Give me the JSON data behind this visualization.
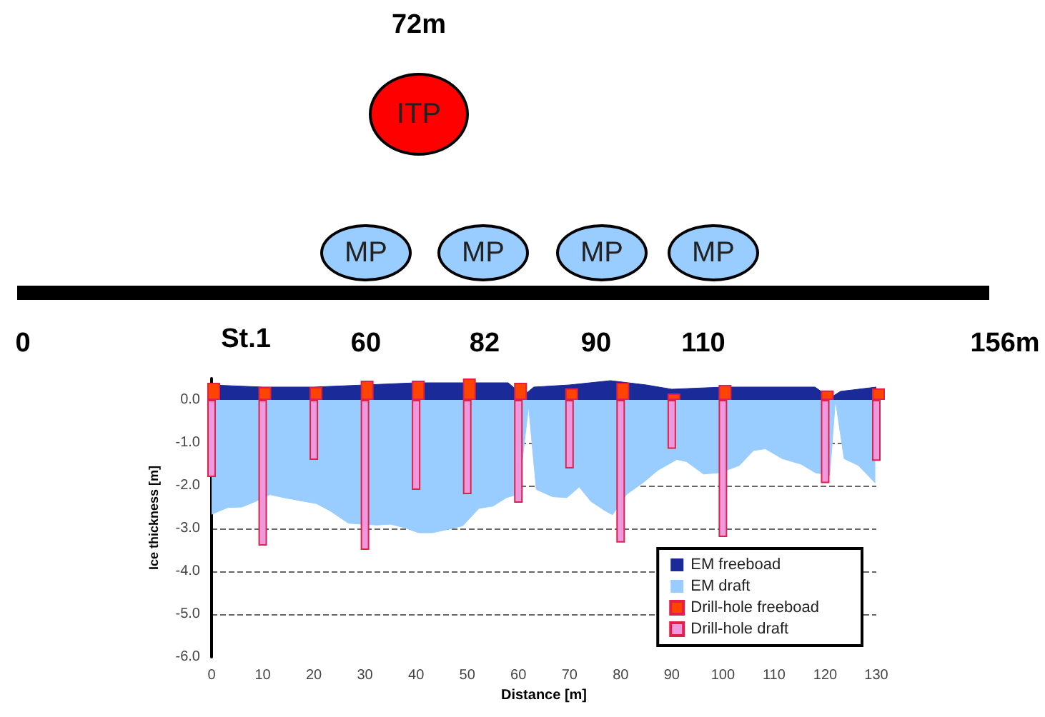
{
  "chart_data": {
    "type": "area",
    "xlabel": "Distance [m]",
    "ylabel": "Ice thickness [m]",
    "xlim": [
      0,
      130
    ],
    "xticks": [
      0,
      10,
      20,
      30,
      40,
      50,
      60,
      70,
      80,
      90,
      100,
      110,
      120,
      130
    ],
    "ylim": [
      -6,
      0.5
    ],
    "yticks": [
      {
        "value": -6,
        "label": "-6.0"
      },
      {
        "value": -5,
        "label": "-5.0"
      },
      {
        "value": -4,
        "label": "-4.0"
      },
      {
        "value": -3,
        "label": "-3.0"
      },
      {
        "value": -2,
        "label": "-2.0"
      },
      {
        "value": -1,
        "label": "-1.0"
      },
      {
        "value": 0,
        "label": "0.0"
      }
    ],
    "grid": "y",
    "line_style": "dashed",
    "legend": "bottom right",
    "marker": "none",
    "annotations": [
      "72m",
      "ITP",
      "MP",
      "MP",
      "MP",
      "MP",
      "0",
      "St.1",
      "60",
      "82",
      "90",
      "110",
      "156m"
    ],
    "series": [
      {
        "name": "EM freeboad",
        "color": "#1a2a99",
        "x": [
          0,
          10,
          20,
          30,
          40,
          50,
          58,
          61,
          63,
          70,
          78,
          85,
          90,
          100,
          110,
          118,
          121,
          123,
          130
        ],
        "values": [
          0.35,
          0.3,
          0.3,
          0.35,
          0.4,
          0.4,
          0.4,
          0.1,
          0.3,
          0.35,
          0.45,
          0.35,
          0.25,
          0.3,
          0.3,
          0.3,
          0.05,
          0.2,
          0.3
        ]
      },
      {
        "name": "EM draft",
        "color": "#99ccff",
        "x": [
          0,
          3.2,
          5.9,
          8.6,
          11.4,
          14.1,
          16.8,
          20.5,
          23.2,
          26.8,
          29.5,
          32.3,
          35,
          37.7,
          40.5,
          43.2,
          45.9,
          49.1,
          52.3,
          55,
          57.7,
          60,
          62,
          63.5,
          66.7,
          69.5,
          71.9,
          74.2,
          77,
          78.4,
          81.2,
          84.5,
          87.3,
          91,
          92.9,
          96.2,
          99.4,
          103.2,
          106,
          108.3,
          111.6,
          115.3,
          118.1,
          120.9,
          122,
          123.7,
          126.5,
          129.8
        ],
        "values": [
          -2.67,
          -2.51,
          -2.5,
          -2.37,
          -2.21,
          -2.28,
          -2.34,
          -2.42,
          -2.59,
          -2.88,
          -2.9,
          -2.92,
          -2.9,
          -2.98,
          -3.1,
          -3.1,
          -3.03,
          -2.94,
          -2.53,
          -2.48,
          -2.28,
          -2.2,
          -0.15,
          -2.09,
          -2.26,
          -2.28,
          -2.03,
          -2.37,
          -2.59,
          -2.68,
          -2.2,
          -1.92,
          -1.64,
          -1.39,
          -1.44,
          -1.73,
          -1.7,
          -1.53,
          -1.18,
          -1.14,
          -1.37,
          -1.5,
          -1.7,
          -1.76,
          0,
          -1.37,
          -1.53,
          -1.94
        ]
      },
      {
        "name": "Drill-hole freeboad",
        "type": "bar",
        "color": "#ff4400",
        "x": [
          0,
          10,
          20,
          30,
          40,
          50,
          60,
          70,
          80,
          90,
          100,
          120,
          130
        ],
        "values": [
          0.4,
          0.3,
          0.3,
          0.45,
          0.45,
          0.5,
          0.4,
          0.27,
          0.4,
          0.15,
          0.35,
          0.22,
          0.27
        ]
      },
      {
        "name": "Drill-hole draft",
        "type": "bar",
        "color": "#ee99dd",
        "x": [
          0,
          10,
          20,
          30,
          40,
          50,
          60,
          70,
          80,
          90,
          100,
          120,
          130
        ],
        "values": [
          -1.8,
          -3.4,
          -1.4,
          -3.5,
          -2.1,
          -2.2,
          -2.4,
          -1.6,
          -3.33,
          -1.14,
          -3.2,
          -1.94,
          -1.42
        ]
      }
    ]
  }
}
